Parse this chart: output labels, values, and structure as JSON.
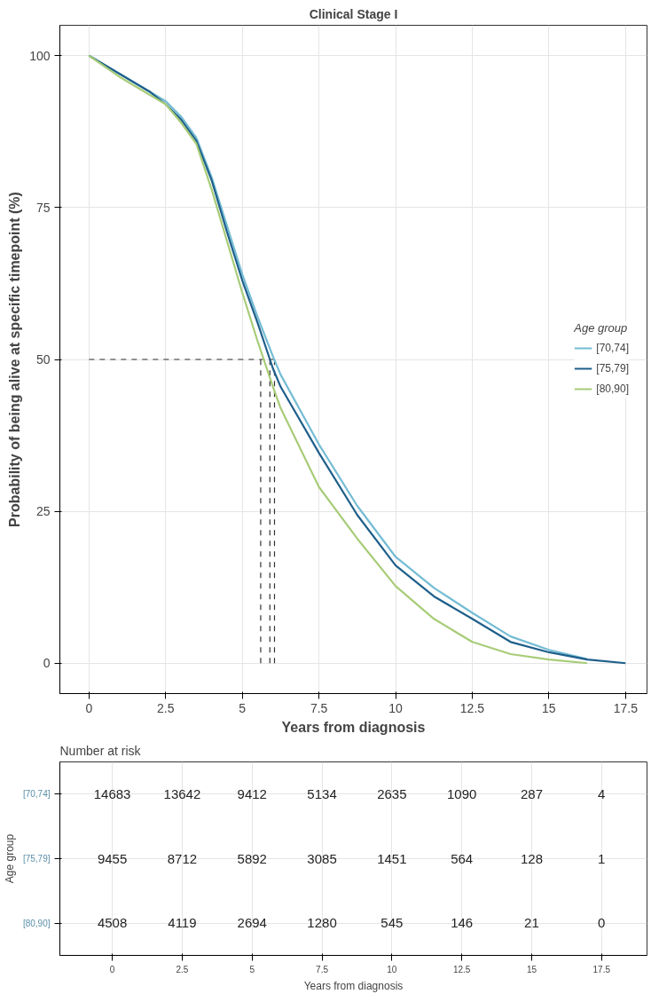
{
  "chart_data": [
    {
      "type": "line",
      "title": "Clinical Stage I",
      "xlabel": "Years from diagnosis",
      "ylabel": "Probability of being alive at specific timepoint (%)",
      "legend_title": "Age group",
      "x": [
        0,
        1,
        2,
        2.5,
        3,
        3.5,
        4,
        4.5,
        5,
        5.5,
        6,
        6.25,
        7.5,
        8.75,
        10,
        11.25,
        12.5,
        13.75,
        15,
        16.25,
        17.5
      ],
      "series": [
        {
          "name": "[70,74]",
          "color": "#74bcd4",
          "values": [
            100,
            97,
            94,
            92.5,
            90,
            86.5,
            80,
            72,
            64,
            57,
            50.5,
            47.5,
            36,
            25.9,
            17.5,
            12.4,
            8.3,
            4.4,
            2.2,
            0.7,
            null
          ]
        },
        {
          "name": "[75,79]",
          "color": "#1f5f8b",
          "values": [
            100,
            97,
            94,
            92,
            89.5,
            86,
            79.5,
            71,
            63,
            56,
            48.5,
            45.5,
            34.6,
            24.4,
            16.1,
            11,
            7.3,
            3.5,
            1.8,
            0.6,
            0
          ]
        },
        {
          "name": "[80,90]",
          "color": "#a8cc78",
          "values": [
            100,
            96.5,
            93.5,
            92,
            89,
            85.5,
            78,
            69.5,
            61,
            53,
            45.5,
            42,
            29,
            20.5,
            12.7,
            7.3,
            3.5,
            1.5,
            0.6,
            0,
            null
          ]
        }
      ],
      "ref_lines": [
        {
          "axis": "y",
          "value": 50,
          "color": "#333333",
          "line_style": "dashed"
        },
        {
          "axis": "x",
          "value": 5.6,
          "color": "#333333",
          "line_style": "dashed"
        },
        {
          "axis": "x",
          "value": 5.9,
          "color": "#333333",
          "line_style": "dashed"
        },
        {
          "axis": "x",
          "value": 6.05,
          "color": "#333333",
          "line_style": "dashed"
        }
      ],
      "xlim": [
        -0.95,
        18.2
      ],
      "xticks": [
        0,
        2.5,
        5,
        7.5,
        10,
        12.5,
        15,
        17.5
      ],
      "ylim": [
        -5,
        105
      ],
      "yticks": [
        0,
        25,
        50,
        75,
        100
      ],
      "grid": true,
      "legend": "right",
      "line_style": "solid",
      "marker": "none"
    },
    {
      "type": "heatmap",
      "title": "Number at risk",
      "xlabel": "Years from diagnosis",
      "ylabel": "Age group",
      "categories": [
        "0",
        "2.5",
        "5",
        "7.5",
        "10",
        "12.5",
        "15",
        "17.5"
      ],
      "y_categories": [
        "[70,74]",
        "[75,79]",
        "[80,90]"
      ],
      "cells": [
        [
          14683,
          13642,
          9412,
          5134,
          2635,
          1090,
          287,
          4
        ],
        [
          9455,
          8712,
          5892,
          3085,
          1451,
          564,
          128,
          1
        ],
        [
          4508,
          4119,
          2694,
          1280,
          545,
          146,
          21,
          0
        ]
      ],
      "data_labels": true,
      "grid": true
    }
  ]
}
